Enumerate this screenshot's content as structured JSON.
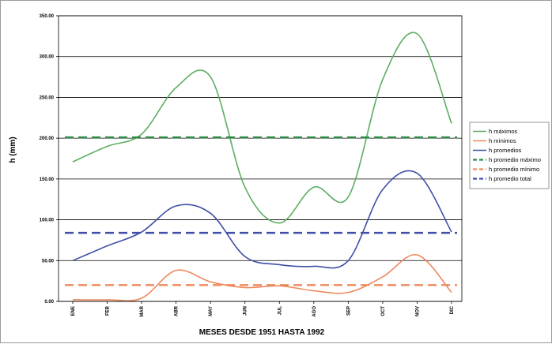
{
  "chart_data": {
    "type": "line",
    "xlabel": "MESES DESDE 1951 HASTA 1992",
    "ylabel": "h (mm)",
    "ylim": [
      0,
      350
    ],
    "ytick_step": 50,
    "y_tick_labels": [
      "0.00",
      "50.00",
      "100.00",
      "150.00",
      "200.00",
      "250.00",
      "300.00",
      "350.00"
    ],
    "categories": [
      "ENE",
      "FEB",
      "MAR",
      "ABR",
      "MAY",
      "JUN",
      "JUL",
      "AGO",
      "SEP",
      "OCT",
      "NOV",
      "DIC"
    ],
    "grid": true,
    "legend_position": "right",
    "series": [
      {
        "name": "h máximos",
        "style": "solid",
        "color": "#5cad62",
        "values": [
          171,
          190,
          205,
          262,
          275,
          140,
          96,
          140,
          128,
          272,
          328,
          218
        ]
      },
      {
        "name": "h mínimos",
        "style": "solid",
        "color": "#ec8a5f",
        "values": [
          2,
          2,
          4,
          38,
          24,
          17,
          19,
          13,
          11,
          30,
          57,
          11
        ]
      },
      {
        "name": "h promedios",
        "style": "solid",
        "color": "#3f4fa6",
        "values": [
          50,
          68,
          85,
          117,
          108,
          55,
          45,
          43,
          50,
          137,
          157,
          85
        ]
      },
      {
        "name": "h promedio máximo",
        "style": "dashed",
        "color": "#2c8a44",
        "values": [
          201,
          201,
          201,
          201,
          201,
          201,
          201,
          201,
          201,
          201,
          201,
          201
        ]
      },
      {
        "name": "h promedio mínimo",
        "style": "dashed",
        "color": "#ec8a5f",
        "values": [
          20,
          20,
          20,
          20,
          20,
          20,
          20,
          20,
          20,
          20,
          20,
          20
        ]
      },
      {
        "name": "h promedio total",
        "style": "dashed",
        "color": "#3f4fa6",
        "values": [
          84,
          84,
          84,
          84,
          84,
          84,
          84,
          84,
          84,
          84,
          84,
          84
        ]
      }
    ]
  }
}
